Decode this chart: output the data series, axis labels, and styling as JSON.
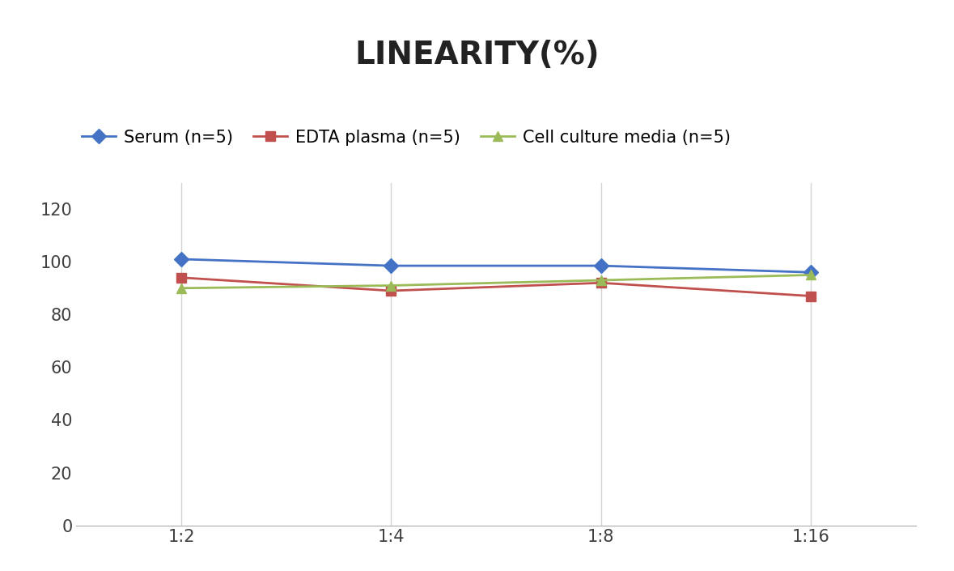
{
  "title": "LINEARITY(%)",
  "title_fontsize": 28,
  "title_fontweight": "bold",
  "x_labels": [
    "1:2",
    "1:4",
    "1:8",
    "1:16"
  ],
  "x_positions": [
    0,
    1,
    2,
    3
  ],
  "series": [
    {
      "label": "Serum (n=5)",
      "values": [
        101,
        98.5,
        98.5,
        96
      ],
      "color": "#4472C4",
      "marker": "D",
      "markersize": 9,
      "linewidth": 2
    },
    {
      "label": "EDTA plasma (n=5)",
      "values": [
        94,
        89,
        92,
        87
      ],
      "color": "#C0504D",
      "marker": "s",
      "markersize": 9,
      "linewidth": 2
    },
    {
      "label": "Cell culture media (n=5)",
      "values": [
        90,
        91,
        93,
        95
      ],
      "color": "#9BBB59",
      "marker": "^",
      "markersize": 9,
      "linewidth": 2
    }
  ],
  "ylim": [
    0,
    130
  ],
  "yticks": [
    0,
    20,
    40,
    60,
    80,
    100,
    120
  ],
  "background_color": "#ffffff",
  "grid_color": "#d3d3d3",
  "legend_fontsize": 15,
  "tick_fontsize": 15,
  "axis_label_color": "#404040"
}
